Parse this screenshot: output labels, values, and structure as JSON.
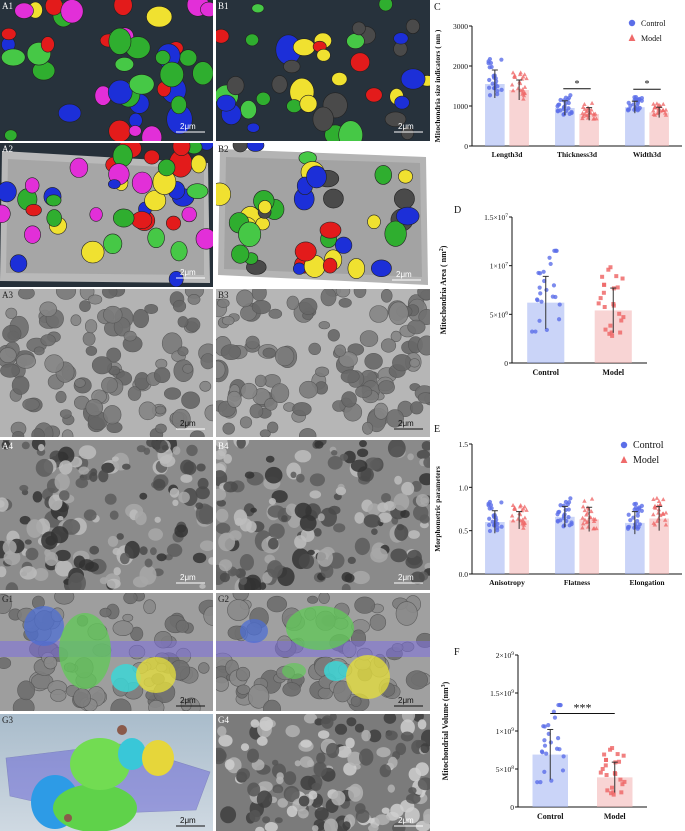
{
  "panels": {
    "A1": {
      "label": "A1",
      "scale": "2μm"
    },
    "B1": {
      "label": "B1",
      "scale": "2μm"
    },
    "A2": {
      "label": "A2",
      "scale": "2μm"
    },
    "B2": {
      "label": "B2",
      "scale": "2μm"
    },
    "A3": {
      "label": "A3",
      "scale": "2μm"
    },
    "B3": {
      "label": "B3",
      "scale": "2μm"
    },
    "A4": {
      "label": "A4",
      "scale": "2μm"
    },
    "B4": {
      "label": "B4",
      "scale": "2μm"
    },
    "G1": {
      "label": "G1",
      "scale": "2μm"
    },
    "G2": {
      "label": "G2",
      "scale": "2μm"
    },
    "G3": {
      "label": "G3",
      "scale": "2μm"
    },
    "G4": {
      "label": "G4",
      "scale": "2μm"
    }
  },
  "colors": {
    "control": "#5b6ee8",
    "model": "#ef6a6a",
    "control_fill": "#9fb0f2",
    "model_fill": "#f3b1b1"
  },
  "chart_data": [
    {
      "id": "C",
      "panel_label": "C",
      "type": "bar",
      "ylabel": "Mitochondria size indicators ( nm )",
      "categories": [
        "Length3d",
        "Thickness3d",
        "Width3d"
      ],
      "series": [
        {
          "name": "Control",
          "values": [
            1550,
            950,
            970
          ],
          "errors": [
            350,
            180,
            150
          ]
        },
        {
          "name": "Model",
          "values": [
            1400,
            800,
            840
          ],
          "errors": [
            250,
            160,
            130
          ]
        }
      ],
      "ylim": [
        0,
        3000
      ],
      "yticks": [
        "0",
        "1000",
        "2000",
        "3000"
      ],
      "significance": [
        "",
        "*",
        "*"
      ],
      "legend": "top-right"
    },
    {
      "id": "D",
      "panel_label": "D",
      "type": "bar",
      "ylabel": "Mitochondria Area ( nm",
      "ylabel_sup": "2",
      "ylabel_end": ")",
      "categories": [
        "Control",
        "Model"
      ],
      "values": [
        6200000,
        5400000
      ],
      "errors": [
        2700000,
        2300000
      ],
      "ylim": [
        0,
        15000000
      ],
      "yticks": [
        {
          "base": "0",
          "exp": ""
        },
        {
          "base": "5×10",
          "exp": "6"
        },
        {
          "base": "1×10",
          "exp": "7"
        },
        {
          "base": "1.5×10",
          "exp": "7"
        }
      ]
    },
    {
      "id": "E",
      "panel_label": "E",
      "type": "bar",
      "ylabel": "Morphometric parameters",
      "categories": [
        "Anisotropy",
        "Flatness",
        "Elongation"
      ],
      "series": [
        {
          "name": "Control",
          "values": [
            0.6,
            0.66,
            0.59
          ],
          "errors": [
            0.13,
            0.12,
            0.13
          ]
        },
        {
          "name": "Model",
          "values": [
            0.62,
            0.63,
            0.64
          ],
          "errors": [
            0.1,
            0.14,
            0.14
          ]
        }
      ],
      "ylim": [
        0,
        1.5
      ],
      "yticks": [
        "0.0",
        "0.5",
        "1.0",
        "1.5"
      ],
      "legend": "top-right"
    },
    {
      "id": "F",
      "panel_label": "F",
      "type": "bar",
      "ylabel": "Mitochondrial Volume (nm",
      "ylabel_sup": "3",
      "ylabel_end": ")",
      "categories": [
        "Control",
        "Model"
      ],
      "values": [
        690000000,
        390000000
      ],
      "errors": [
        330000000,
        200000000
      ],
      "ylim": [
        0,
        2000000000
      ],
      "yticks": [
        {
          "base": "0",
          "exp": ""
        },
        {
          "base": "5×10",
          "exp": "8"
        },
        {
          "base": "1×10",
          "exp": "9"
        },
        {
          "base": "1.5×10",
          "exp": "9"
        },
        {
          "base": "2×10",
          "exp": "9"
        }
      ],
      "significance": "***"
    }
  ]
}
